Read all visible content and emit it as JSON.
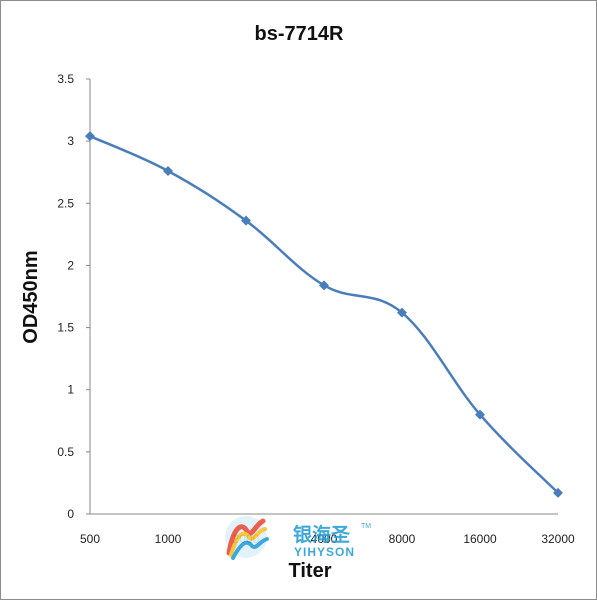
{
  "chart_data": {
    "type": "line",
    "title": "bs-7714R",
    "xlabel": "Titer",
    "ylabel": "OD450nm",
    "categories": [
      "500",
      "1000",
      "2000",
      "4000",
      "8000",
      "16000",
      "32000"
    ],
    "series": [
      {
        "values": [
          3.04,
          2.76,
          2.36,
          1.84,
          1.62,
          0.8,
          0.17
        ]
      }
    ],
    "y_ticks": [
      "0",
      "0.5",
      "1",
      "1.5",
      "2",
      "2.5",
      "3",
      "3.5"
    ],
    "ylim": [
      0,
      3.5
    ],
    "grid": false,
    "legend": "none",
    "line_color": "#4a7ebb"
  },
  "watermark": {
    "text_cn": "银海圣",
    "text_en": "YIHYSON",
    "tm": "TM"
  }
}
